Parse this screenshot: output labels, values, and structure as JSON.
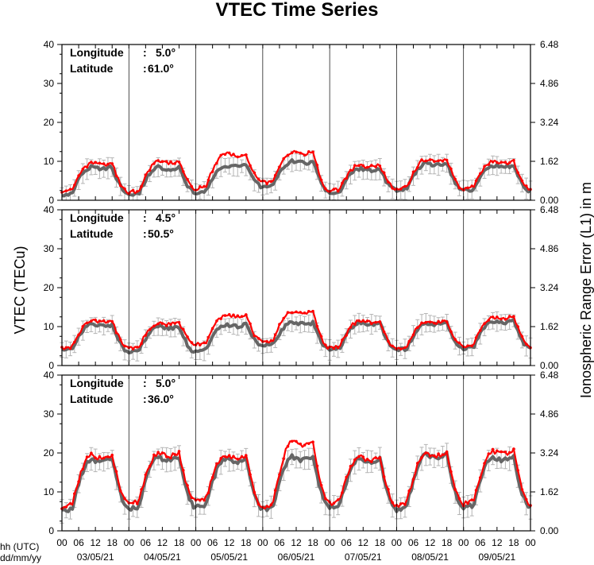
{
  "title": "VTEC Time Series",
  "y_label_left": "VTEC (TECu)",
  "y_label_right": "Ionospheric Range Error (L1) in m",
  "x_label_hours": "hh (UTC)",
  "x_label_dates": "dd/mm/yy",
  "info_labels": {
    "longitude": "Longitude",
    "latitude": "Latitude",
    "sep": ":"
  },
  "colors": {
    "red_series": "#ff0000",
    "gray_series": "#666666",
    "error_bars": "#b4b4b4",
    "grid": "#000000"
  },
  "chart_data": {
    "type": "line",
    "x_hour_ticks": [
      "00",
      "06",
      "12",
      "18",
      "00",
      "06",
      "12",
      "18",
      "00",
      "06",
      "12",
      "18",
      "00",
      "06",
      "12",
      "18",
      "00",
      "06",
      "12",
      "18",
      "00",
      "06",
      "12",
      "18",
      "00",
      "06",
      "12",
      "18",
      "00"
    ],
    "date_labels": [
      "03/05/21",
      "04/05/21",
      "05/05/21",
      "06/05/21",
      "07/05/21",
      "08/05/21",
      "09/05/21"
    ],
    "xlim_hours": [
      0,
      168
    ],
    "y_ticks_left": [
      "0",
      "10",
      "20",
      "30",
      "40"
    ],
    "y_ticks_right": [
      "0.00",
      "1.62",
      "3.24",
      "4.86",
      "6.48"
    ],
    "ylim": [
      0,
      40
    ],
    "grid": "vertical lines at day boundaries",
    "panels": [
      {
        "longitude": "5.0°",
        "latitude": "61.0°",
        "series": [
          {
            "color": "red",
            "daily_min": [
              2.5,
              2.0,
              3.0,
              4.5,
              2.5,
              3.0,
              3.0
            ],
            "daily_max": [
              9.5,
              10.0,
              12.0,
              12.5,
              9.0,
              10.5,
              10.0
            ]
          },
          {
            "color": "gray",
            "daily_min": [
              1.5,
              1.5,
              2.0,
              3.5,
              2.0,
              2.5,
              2.5
            ],
            "daily_max": [
              8.5,
              8.5,
              9.0,
              10.0,
              8.0,
              9.5,
              9.0
            ]
          }
        ]
      },
      {
        "longitude": "4.5°",
        "latitude": "50.5°",
        "series": [
          {
            "color": "red",
            "daily_min": [
              4.5,
              4.5,
              5.5,
              6.0,
              4.5,
              4.5,
              5.0
            ],
            "daily_max": [
              11.5,
              11.0,
              13.0,
              14.0,
              11.5,
              11.5,
              12.5
            ]
          },
          {
            "color": "gray",
            "daily_min": [
              4.0,
              3.5,
              3.5,
              5.0,
              4.0,
              4.0,
              4.5
            ],
            "daily_max": [
              10.5,
              10.0,
              10.5,
              11.0,
              11.0,
              11.0,
              11.5
            ]
          }
        ]
      },
      {
        "longitude": "5.0°",
        "latitude": "36.0°",
        "series": [
          {
            "color": "red",
            "daily_min": [
              6.0,
              7.0,
              7.5,
              6.0,
              7.0,
              6.5,
              7.0
            ],
            "daily_max": [
              19.5,
              20.0,
              19.5,
              23.0,
              19.0,
              20.0,
              20.5
            ]
          },
          {
            "color": "gray",
            "daily_min": [
              5.0,
              5.5,
              6.0,
              5.5,
              6.0,
              5.5,
              6.0
            ],
            "daily_max": [
              18.5,
              19.0,
              18.5,
              19.0,
              18.5,
              19.5,
              19.0
            ]
          }
        ]
      }
    ]
  }
}
